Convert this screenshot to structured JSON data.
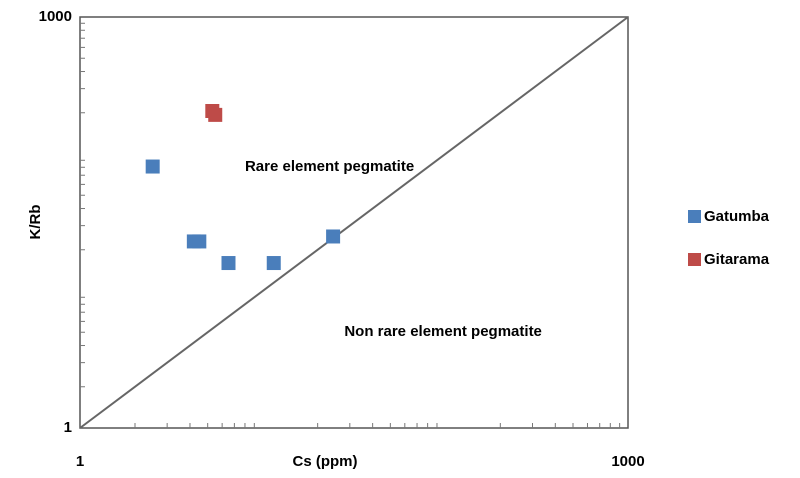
{
  "chart_data": {
    "type": "scatter",
    "x_label": "Cs (ppm)",
    "y_label": "K/Rb",
    "xlog": true,
    "ylog": true,
    "xlim": [
      1,
      1000
    ],
    "ylim": [
      1,
      1000
    ],
    "xticks": [
      1,
      1000
    ],
    "yticks": [
      1,
      1000
    ],
    "diagonal": true,
    "legend": "right",
    "annotations": [
      {
        "text": "Rare element pegmatite",
        "x": 8,
        "y": 80
      },
      {
        "text": "Non rare element pegmatite",
        "x": 28,
        "y": 5
      }
    ],
    "series": [
      {
        "name": "Gatumba",
        "color": "#4a7ebb",
        "x": [
          2.5,
          4.2,
          4.5,
          6.5,
          11.5,
          24.3
        ],
        "values": [
          81,
          23,
          23,
          16,
          16,
          25
        ]
      },
      {
        "name": "Gitarama",
        "color": "#be4b48",
        "x": [
          5.3,
          5.5
        ],
        "values": [
          206,
          193
        ]
      }
    ]
  }
}
